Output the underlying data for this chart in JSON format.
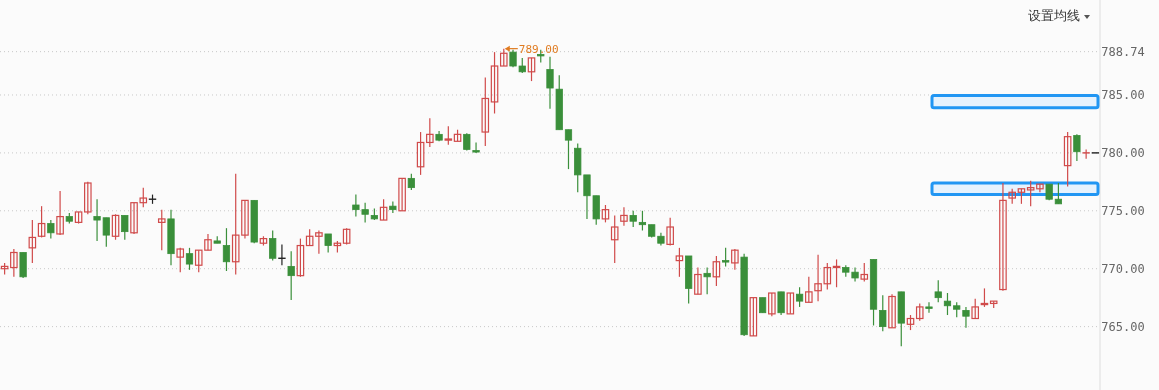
{
  "chart_data": {
    "type": "candlestick",
    "categories": [
      null,
      null,
      null,
      null,
      null,
      null,
      null,
      null,
      null,
      null,
      null,
      null,
      null,
      null,
      null,
      null,
      null,
      null,
      null,
      null,
      null,
      null,
      null,
      null,
      null,
      null,
      null,
      null,
      null,
      null,
      null,
      null,
      null,
      null,
      null,
      null,
      null,
      null,
      null,
      null,
      null,
      null,
      null,
      null,
      null,
      null,
      null,
      null,
      null,
      null,
      null,
      null,
      null,
      null,
      null,
      null,
      null,
      null,
      null,
      null,
      null,
      null,
      null,
      null,
      null,
      null,
      null,
      null,
      null,
      null,
      null,
      null,
      null,
      null,
      null,
      null,
      null,
      null,
      null,
      null,
      null,
      null,
      null,
      null,
      null,
      null,
      null,
      null,
      null,
      null,
      null,
      null,
      null,
      null,
      null,
      null,
      null,
      null,
      null,
      null,
      null,
      null,
      null,
      null,
      null,
      null,
      null,
      null,
      null,
      null,
      null,
      null,
      null,
      null,
      null,
      null,
      null,
      null,
      null
    ],
    "ohlc": [
      [
        770.0,
        770.5,
        769.5,
        770.2
      ],
      [
        770.1,
        771.7,
        769.3,
        771.4
      ],
      [
        771.4,
        771.4,
        769.2,
        769.3
      ],
      [
        771.8,
        774.2,
        770.5,
        772.7
      ],
      [
        772.8,
        775.4,
        772.7,
        773.9
      ],
      [
        773.9,
        774.2,
        772.6,
        773.1
      ],
      [
        773.0,
        776.7,
        772.9,
        774.5
      ],
      [
        774.5,
        774.8,
        773.9,
        774.1
      ],
      [
        774.0,
        774.9,
        773.9,
        774.9
      ],
      [
        774.9,
        777.5,
        774.7,
        777.4
      ],
      [
        774.5,
        776.0,
        772.4,
        774.2
      ],
      [
        774.4,
        774.4,
        771.9,
        772.9
      ],
      [
        772.8,
        774.7,
        772.5,
        774.6
      ],
      [
        774.6,
        774.6,
        772.5,
        773.2
      ],
      [
        773.1,
        775.7,
        773.0,
        775.7
      ],
      [
        775.7,
        777.0,
        775.3,
        776.1
      ],
      [
        776.0,
        776.4,
        775.6,
        776.0
      ],
      [
        774.0,
        775.1,
        771.6,
        774.3
      ],
      [
        774.3,
        775.1,
        770.3,
        771.3
      ],
      [
        771.0,
        771.8,
        769.7,
        771.7
      ],
      [
        771.3,
        771.8,
        769.9,
        770.4
      ],
      [
        770.3,
        771.6,
        769.7,
        771.6
      ],
      [
        771.6,
        773.0,
        771.6,
        772.5
      ],
      [
        772.4,
        772.8,
        772.2,
        772.2
      ],
      [
        772.0,
        773.5,
        769.8,
        770.6
      ],
      [
        770.6,
        778.2,
        769.5,
        772.9
      ],
      [
        772.9,
        775.9,
        772.6,
        775.9
      ],
      [
        775.9,
        775.9,
        772.2,
        772.3
      ],
      [
        772.2,
        772.8,
        772.0,
        772.6
      ],
      [
        772.6,
        773.3,
        770.7,
        770.9
      ],
      [
        770.9,
        772.1,
        770.3,
        770.9
      ],
      [
        770.2,
        771.5,
        767.3,
        769.4
      ],
      [
        769.4,
        772.6,
        769.3,
        772.0
      ],
      [
        772.0,
        773.4,
        772.0,
        772.8
      ],
      [
        772.8,
        773.3,
        771.3,
        773.1
      ],
      [
        773.0,
        773.0,
        771.4,
        772.0
      ],
      [
        772.0,
        772.4,
        771.4,
        772.2
      ],
      [
        772.2,
        773.5,
        772.1,
        773.4
      ],
      [
        775.5,
        776.4,
        774.5,
        775.1
      ],
      [
        775.1,
        775.7,
        774.0,
        774.7
      ],
      [
        774.6,
        775.2,
        774.2,
        774.3
      ],
      [
        774.2,
        776.0,
        774.2,
        775.3
      ],
      [
        775.4,
        775.8,
        774.8,
        775.1
      ],
      [
        775.0,
        777.8,
        775.0,
        777.8
      ],
      [
        777.8,
        778.2,
        776.8,
        777.0
      ],
      [
        778.8,
        781.8,
        778.1,
        780.9
      ],
      [
        780.9,
        783.0,
        780.5,
        781.6
      ],
      [
        781.6,
        781.9,
        781.0,
        781.1
      ],
      [
        781.1,
        782.3,
        780.7,
        781.2
      ],
      [
        781.0,
        782.0,
        781.0,
        781.6
      ],
      [
        781.6,
        781.7,
        780.2,
        780.3
      ],
      [
        780.2,
        780.9,
        780.0,
        780.1
      ],
      [
        781.8,
        786.5,
        780.6,
        784.7
      ],
      [
        784.4,
        788.7,
        783.4,
        787.5
      ],
      [
        787.5,
        789.0,
        787.5,
        788.6
      ],
      [
        788.7,
        788.9,
        787.4,
        787.5
      ],
      [
        787.5,
        788.2,
        786.9,
        787.0
      ],
      [
        787.0,
        788.2,
        786.2,
        788.2
      ],
      [
        788.5,
        788.9,
        787.8,
        788.4
      ],
      [
        787.2,
        788.3,
        783.8,
        785.6
      ],
      [
        785.5,
        786.7,
        782.0,
        782.0
      ],
      [
        782.0,
        782.0,
        778.6,
        781.1
      ],
      [
        780.4,
        780.8,
        776.6,
        778.1
      ],
      [
        778.1,
        778.1,
        774.3,
        776.3
      ],
      [
        776.3,
        776.3,
        773.8,
        774.3
      ],
      [
        774.3,
        775.5,
        774.0,
        775.1
      ],
      [
        772.5,
        774.6,
        770.5,
        773.6
      ],
      [
        774.1,
        775.3,
        773.7,
        774.6
      ],
      [
        774.6,
        775.0,
        773.6,
        774.1
      ],
      [
        774.0,
        775.0,
        773.3,
        773.8
      ],
      [
        773.8,
        773.8,
        772.7,
        772.8
      ],
      [
        772.8,
        773.1,
        772.0,
        772.2
      ],
      [
        772.1,
        774.4,
        772.0,
        773.6
      ],
      [
        770.7,
        771.8,
        769.3,
        771.1
      ],
      [
        771.1,
        771.1,
        767.0,
        768.3
      ],
      [
        767.8,
        770.1,
        767.8,
        769.5
      ],
      [
        769.6,
        770.1,
        767.8,
        769.3
      ],
      [
        769.3,
        771.1,
        768.5,
        770.6
      ],
      [
        770.7,
        771.8,
        770.2,
        770.6
      ],
      [
        770.5,
        771.7,
        769.9,
        771.6
      ],
      [
        771.0,
        771.3,
        764.2,
        764.3
      ],
      [
        764.2,
        767.5,
        764.2,
        767.5
      ],
      [
        767.5,
        767.5,
        766.2,
        766.2
      ],
      [
        766.1,
        767.9,
        765.9,
        767.9
      ],
      [
        768.0,
        768.0,
        766.0,
        766.2
      ],
      [
        766.1,
        767.9,
        766.1,
        767.9
      ],
      [
        767.8,
        768.4,
        766.7,
        767.2
      ],
      [
        767.1,
        769.3,
        767.1,
        768.0
      ],
      [
        768.1,
        771.2,
        767.2,
        768.7
      ],
      [
        768.7,
        770.5,
        768.2,
        770.1
      ],
      [
        770.1,
        770.8,
        768.4,
        770.2
      ],
      [
        770.1,
        770.3,
        769.3,
        769.7
      ],
      [
        769.7,
        770.1,
        768.9,
        769.2
      ],
      [
        769.1,
        770.5,
        768.9,
        769.5
      ],
      [
        770.8,
        770.8,
        765.1,
        766.5
      ],
      [
        766.4,
        767.7,
        764.6,
        765.0
      ],
      [
        764.9,
        767.8,
        764.9,
        767.6
      ],
      [
        768.0,
        768.0,
        763.3,
        765.3
      ],
      [
        765.2,
        766.0,
        764.7,
        765.7
      ],
      [
        765.7,
        767.0,
        765.5,
        766.7
      ],
      [
        766.7,
        767.1,
        766.2,
        766.6
      ],
      [
        768.0,
        769.0,
        767.1,
        767.5
      ],
      [
        767.2,
        767.9,
        766.0,
        766.8
      ],
      [
        766.8,
        767.1,
        765.8,
        766.5
      ],
      [
        766.4,
        766.7,
        764.9,
        765.9
      ],
      [
        765.7,
        767.4,
        765.7,
        766.7
      ],
      [
        766.9,
        768.3,
        766.7,
        767.0
      ],
      [
        767.0,
        767.2,
        766.6,
        767.2
      ],
      [
        768.2,
        777.4,
        768.1,
        775.9
      ],
      [
        776.1,
        776.9,
        775.6,
        776.6
      ],
      [
        776.6,
        776.9,
        775.6,
        776.9
      ],
      [
        776.8,
        777.6,
        775.4,
        777.0
      ],
      [
        776.9,
        777.3,
        776.6,
        777.3
      ],
      [
        777.3,
        777.3,
        775.9,
        776.0
      ],
      [
        776.0,
        777.4,
        775.6,
        775.6
      ],
      [
        778.9,
        781.8,
        777.1,
        781.4
      ],
      [
        781.5,
        781.6,
        779.3,
        780.1
      ],
      [
        780.0,
        780.3,
        779.5,
        780.0
      ],
      [
        780.0,
        780.0,
        780.0,
        780.0
      ]
    ],
    "colors": [
      "#d04a4a",
      "#d04a4a",
      "#3a8f3a",
      "#d04a4a",
      "#d04a4a",
      "#3a8f3a",
      "#d04a4a",
      "#3a8f3a",
      "#d04a4a",
      "#d04a4a",
      "#3a8f3a",
      "#3a8f3a",
      "#d04a4a",
      "#3a8f3a",
      "#d04a4a",
      "#d04a4a",
      "#222222",
      "#d04a4a",
      "#3a8f3a",
      "#d04a4a",
      "#3a8f3a",
      "#d04a4a",
      "#d04a4a",
      "#3a8f3a",
      "#3a8f3a",
      "#d04a4a",
      "#d04a4a",
      "#3a8f3a",
      "#d04a4a",
      "#3a8f3a",
      "#222222",
      "#3a8f3a",
      "#d04a4a",
      "#d04a4a",
      "#d04a4a",
      "#3a8f3a",
      "#d04a4a",
      "#d04a4a",
      "#3a8f3a",
      "#3a8f3a",
      "#3a8f3a",
      "#d04a4a",
      "#3a8f3a",
      "#d04a4a",
      "#3a8f3a",
      "#d04a4a",
      "#d04a4a",
      "#3a8f3a",
      "#d04a4a",
      "#d04a4a",
      "#3a8f3a",
      "#3a8f3a",
      "#d04a4a",
      "#d04a4a",
      "#d04a4a",
      "#3a8f3a",
      "#3a8f3a",
      "#d04a4a",
      "#3a8f3a",
      "#3a8f3a",
      "#3a8f3a",
      "#3a8f3a",
      "#3a8f3a",
      "#3a8f3a",
      "#3a8f3a",
      "#d04a4a",
      "#d04a4a",
      "#d04a4a",
      "#3a8f3a",
      "#3a8f3a",
      "#3a8f3a",
      "#3a8f3a",
      "#d04a4a",
      "#d04a4a",
      "#3a8f3a",
      "#d04a4a",
      "#3a8f3a",
      "#d04a4a",
      "#3a8f3a",
      "#d04a4a",
      "#3a8f3a",
      "#d04a4a",
      "#3a8f3a",
      "#d04a4a",
      "#3a8f3a",
      "#d04a4a",
      "#3a8f3a",
      "#d04a4a",
      "#d04a4a",
      "#d04a4a",
      "#d04a4a",
      "#3a8f3a",
      "#3a8f3a",
      "#d04a4a",
      "#3a8f3a",
      "#3a8f3a",
      "#d04a4a",
      "#3a8f3a",
      "#d04a4a",
      "#d04a4a",
      "#3a8f3a",
      "#3a8f3a",
      "#3a8f3a",
      "#3a8f3a",
      "#3a8f3a",
      "#d04a4a",
      "#d04a4a",
      "#d04a4a",
      "#d04a4a",
      "#d04a4a",
      "#d04a4a",
      "#d04a4a",
      "#d04a4a",
      "#3a8f3a",
      "#3a8f3a",
      "#d04a4a",
      "#3a8f3a",
      "#d04a4a",
      "#222222"
    ],
    "ylim": [
      759.7,
      793.2
    ],
    "yticks": [
      {
        "value": 765,
        "label": "765.00"
      },
      {
        "value": 770,
        "label": "770.00"
      },
      {
        "value": 775,
        "label": "775.00"
      },
      {
        "value": 780,
        "label": "780.00"
      },
      {
        "value": 785,
        "label": "785.00"
      },
      788.74
    ],
    "grid": "y",
    "bands": [
      {
        "axis": "y",
        "from": 783.9,
        "to": 784.95,
        "color": "#2196f3"
      },
      {
        "axis": "y",
        "from": 776.4,
        "to": 777.4,
        "color": "#2196f3"
      }
    ],
    "annotations": [
      "设置均线",
      "789.00"
    ]
  }
}
